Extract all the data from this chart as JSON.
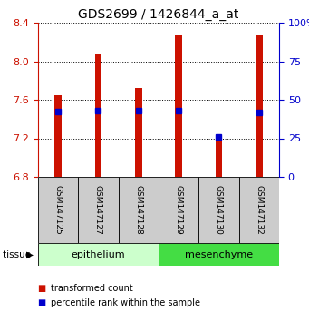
{
  "title": "GDS2699 / 1426844_a_at",
  "samples": [
    "GSM147125",
    "GSM147127",
    "GSM147128",
    "GSM147129",
    "GSM147130",
    "GSM147132"
  ],
  "bar_values": [
    7.65,
    8.07,
    7.72,
    8.27,
    7.22,
    8.27
  ],
  "bar_base": 6.8,
  "blue_values": [
    7.48,
    7.49,
    7.49,
    7.49,
    7.21,
    7.47
  ],
  "ylim_left": [
    6.8,
    8.4
  ],
  "ylim_right": [
    0,
    100
  ],
  "yticks_left": [
    6.8,
    7.2,
    7.6,
    8.0,
    8.4
  ],
  "yticks_right": [
    0,
    25,
    50,
    75,
    100
  ],
  "bar_color": "#cc1100",
  "blue_color": "#0000cc",
  "epithelium_color": "#ccffcc",
  "mesenchyme_color": "#44dd44",
  "tissue_label": "tissue",
  "legend_red_label": "transformed count",
  "legend_blue_label": "percentile rank within the sample",
  "grid_color": "black",
  "sample_box_color": "#cccccc",
  "right_ytick_color": "#0000cc",
  "left_ytick_color": "#cc1100",
  "title_fontsize": 10,
  "tick_fontsize": 8,
  "bar_width": 0.18
}
